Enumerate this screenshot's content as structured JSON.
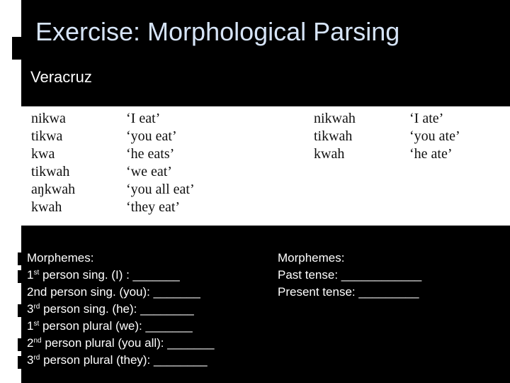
{
  "slide": {
    "title": "Exercise: Morphological Parsing",
    "subtitle": "Veracruz"
  },
  "paradigm": {
    "present": [
      {
        "form": "nikwa",
        "gloss": "‘I eat’"
      },
      {
        "form": "tikwa",
        "gloss": "‘you eat’"
      },
      {
        "form": "kwa",
        "gloss": "‘he eats’"
      },
      {
        "form": "tikwah",
        "gloss": "‘we eat’"
      },
      {
        "form": "aŋkwah",
        "gloss": "‘you all eat’"
      },
      {
        "form": "kwah",
        "gloss": "‘they eat’"
      }
    ],
    "past": [
      {
        "form": "nikwah",
        "gloss": "‘I ate’"
      },
      {
        "form": "tikwah",
        "gloss": "‘you ate’"
      },
      {
        "form": "kwah",
        "gloss": "‘he ate’"
      }
    ]
  },
  "left_box": {
    "heading": "Morphemes:",
    "items": [
      {
        "num": "1",
        "sup": "st",
        "text": " person sing. (I) : _______"
      },
      {
        "num": "2nd",
        "sup": "",
        "text": " person sing. (you): _______"
      },
      {
        "num": "3",
        "sup": "rd",
        "text": " person sing. (he): ________"
      },
      {
        "num": "1",
        "sup": "st",
        "text": " person plural (we): _______"
      },
      {
        "num": "2",
        "sup": "nd",
        "text": " person plural (you all): _______"
      },
      {
        "num": "3",
        "sup": "rd",
        "text": " person plural (they): ________"
      }
    ]
  },
  "right_box": {
    "heading": "Morphemes:",
    "items": [
      "Past tense: ____________",
      "Present tense: _________"
    ]
  },
  "colors": {
    "background": "#000000",
    "title": "#d6e4f7",
    "text": "#ffffff",
    "panel": "#ffffff"
  }
}
